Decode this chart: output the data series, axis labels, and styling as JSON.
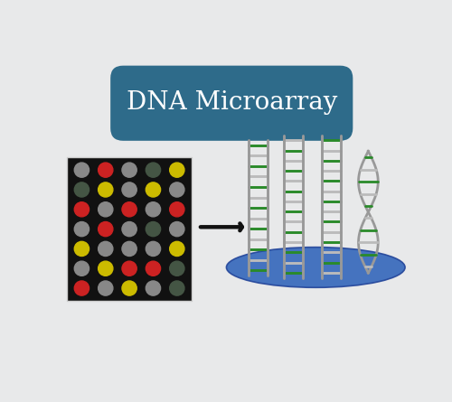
{
  "title": "DNA Microarray",
  "title_fontsize": 20,
  "title_color": "#ffffff",
  "title_bg_color": "#2e6b8a",
  "bg_color": "#e8e9ea",
  "microarray_bg": "#111111",
  "microarray_dots": [
    [
      "gray",
      "red",
      "gray",
      "darkgreen",
      "yellow"
    ],
    [
      "darkgreen",
      "yellow",
      "gray",
      "yellow",
      "gray"
    ],
    [
      "red",
      "gray",
      "red",
      "gray",
      "red"
    ],
    [
      "gray",
      "red",
      "gray",
      "darkgreen",
      "gray"
    ],
    [
      "yellow",
      "gray",
      "gray",
      "gray",
      "yellow"
    ],
    [
      "gray",
      "yellow",
      "red",
      "red",
      "darkgreen"
    ],
    [
      "red",
      "gray",
      "yellow",
      "gray",
      "darkgreen"
    ]
  ],
  "dot_colors": {
    "red": "#cc2222",
    "yellow": "#ccbb00",
    "gray": "#888888",
    "darkgreen": "#445544"
  },
  "arrow_color": "#111111",
  "ellipse_color": "#3366bb",
  "ellipse_edge": "#224499",
  "dna_backbone_color": "#999999",
  "dna_rung_green": "#2a8a2a",
  "dna_rung_gray": "#bbbbbb"
}
